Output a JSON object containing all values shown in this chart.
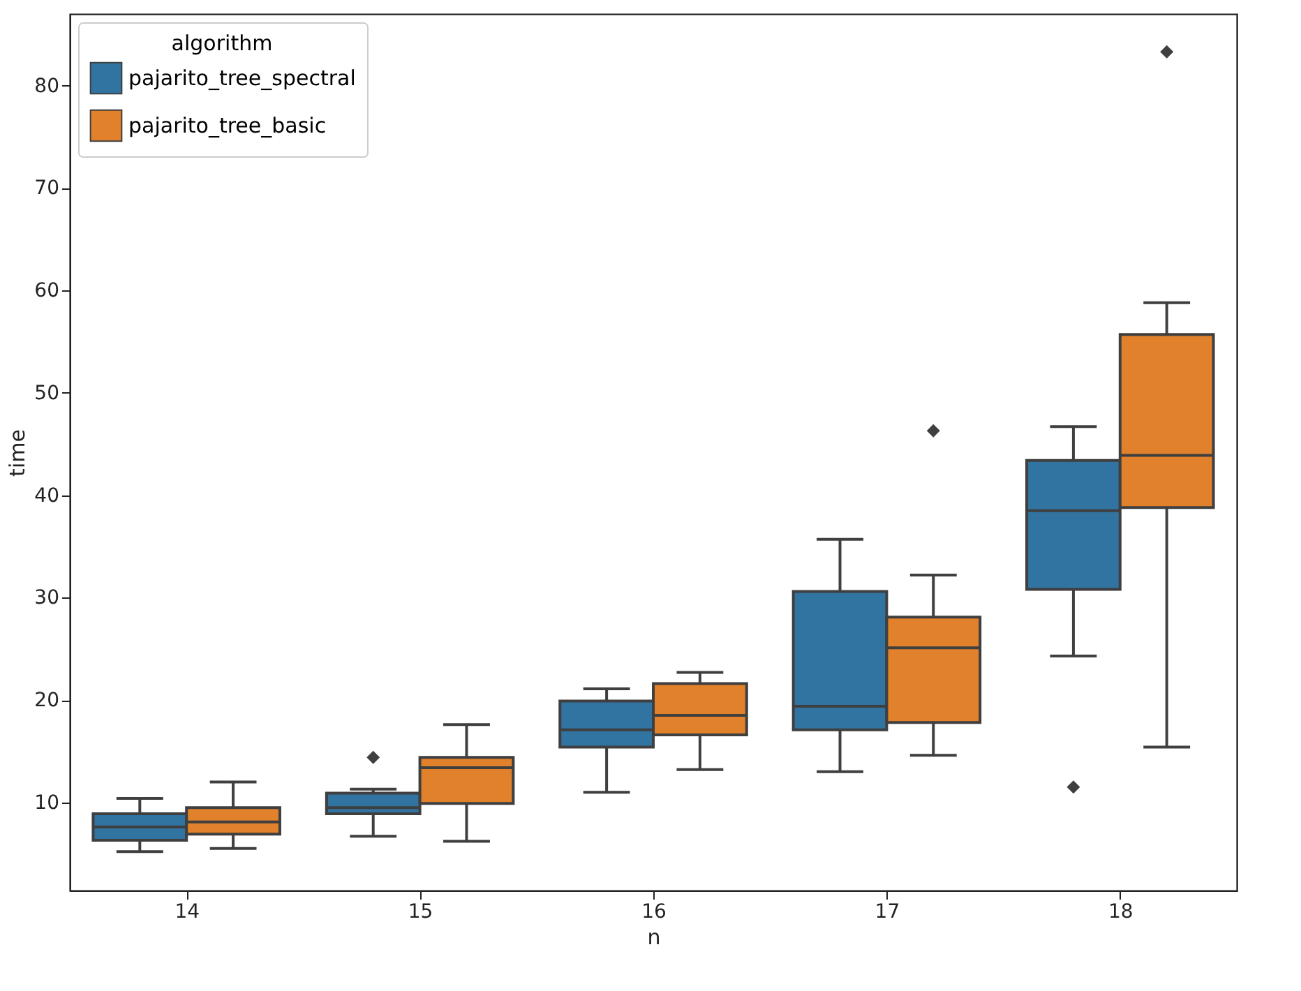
{
  "chart_data": {
    "type": "box",
    "xlabel": "n",
    "ylabel": "time",
    "legend_title": "algorithm",
    "legend": "top left",
    "grid": false,
    "marker": "diamond",
    "categories": [
      "14",
      "15",
      "16",
      "17",
      "18"
    ],
    "ylim": [
      1.4,
      87
    ],
    "yticks": [
      10,
      20,
      30,
      40,
      50,
      60,
      70,
      80
    ],
    "series": [
      {
        "name": "pajarito_tree_spectral",
        "color": "#3274a1",
        "boxes": [
          {
            "low": 5.2,
            "q1": 6.3,
            "median": 7.6,
            "q3": 8.9,
            "high": 10.4
          },
          {
            "low": 6.7,
            "q1": 8.9,
            "median": 9.5,
            "q3": 10.9,
            "high": 11.3,
            "outliers": [
              14.4
            ]
          },
          {
            "low": 11.0,
            "q1": 15.4,
            "median": 17.1,
            "q3": 19.9,
            "high": 21.1
          },
          {
            "low": 13.0,
            "q1": 17.1,
            "median": 19.4,
            "q3": 30.6,
            "high": 35.7
          },
          {
            "low": 24.3,
            "q1": 30.8,
            "median": 38.5,
            "q3": 43.4,
            "high": 46.7,
            "outliers": [
              11.5
            ]
          }
        ]
      },
      {
        "name": "pajarito_tree_basic",
        "color": "#e1812c",
        "boxes": [
          {
            "low": 5.5,
            "q1": 6.9,
            "median": 8.1,
            "q3": 9.5,
            "high": 12.0
          },
          {
            "low": 6.2,
            "q1": 9.9,
            "median": 13.4,
            "q3": 14.4,
            "high": 17.6
          },
          {
            "low": 13.2,
            "q1": 16.6,
            "median": 18.5,
            "q3": 21.6,
            "high": 22.7
          },
          {
            "low": 14.6,
            "q1": 17.8,
            "median": 25.1,
            "q3": 28.1,
            "high": 32.2,
            "outliers": [
              46.3
            ]
          },
          {
            "low": 15.4,
            "q1": 38.8,
            "median": 43.9,
            "q3": 55.7,
            "high": 58.8,
            "outliers": [
              83.3
            ]
          }
        ]
      }
    ]
  }
}
